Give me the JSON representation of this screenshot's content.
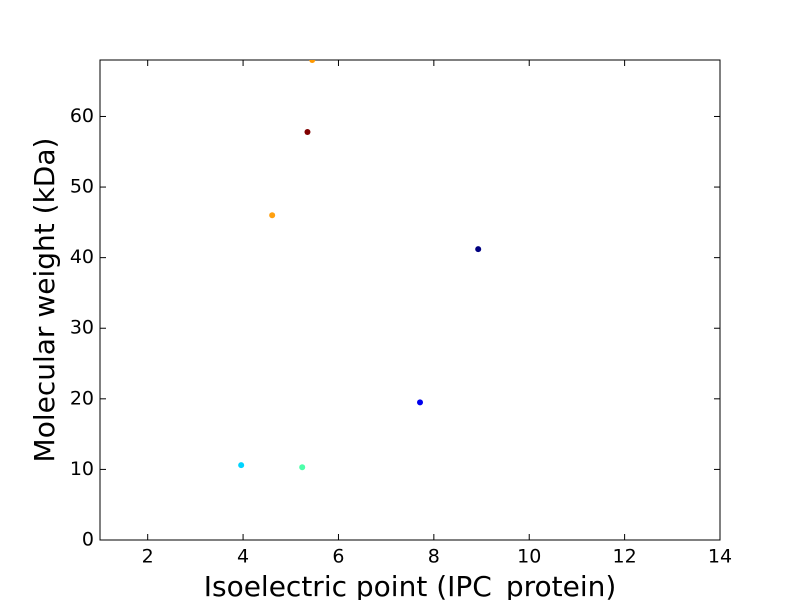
{
  "chart_data": {
    "type": "scatter",
    "xlabel": "Isoelectric point (IPC_protein)",
    "ylabel": "Molecular weight (kDa)",
    "x": [
      5.45,
      5.35,
      4.61,
      8.93,
      7.71,
      3.96,
      5.24
    ],
    "values": [
      68,
      57.8,
      46.0,
      41.2,
      19.5,
      10.6,
      10.3
    ],
    "colors": [
      "#ff9900",
      "#800000",
      "#ffa010",
      "#000080",
      "#0000ee",
      "#00d4ff",
      "#4dffaa"
    ],
    "xlim": [
      1,
      14
    ],
    "xticks": [
      2,
      4,
      6,
      8,
      10,
      12,
      14
    ],
    "ylim": [
      0,
      68
    ],
    "yticks": [
      0,
      10,
      20,
      30,
      40,
      50,
      60
    ]
  }
}
